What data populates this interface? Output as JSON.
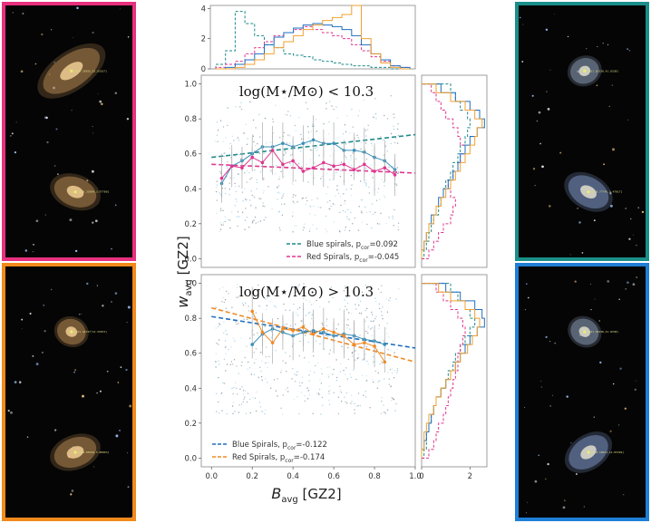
{
  "chart_data": [
    {
      "type": "scatter",
      "title": "log(M⋆/M⊙) < 10.3",
      "xlabel": "B_avg [GZ2]",
      "ylabel": "w_avg [GZ2]",
      "xlim": [
        -0.05,
        1.0
      ],
      "ylim": [
        -0.05,
        1.05
      ],
      "xticks": [
        "0.0",
        "0.2",
        "0.4",
        "0.6",
        "0.8",
        "1.0"
      ],
      "yticks": [
        "0.0",
        "0.2",
        "0.4",
        "0.6",
        "0.8",
        "1.0"
      ],
      "legend_position": "lower-right",
      "series": [
        {
          "name": "Blue spirals, p_cor=0.092",
          "color": "#1f8a8a",
          "kind": "fit-line",
          "line": [
            [
              0.0,
              0.58
            ],
            [
              1.0,
              0.71
            ]
          ]
        },
        {
          "name": "Red Spirals, p_cor=-0.045",
          "color": "#e0358f",
          "kind": "fit-line",
          "line": [
            [
              0.0,
              0.54
            ],
            [
              1.0,
              0.49
            ]
          ]
        },
        {
          "color": "#3a8fb7",
          "kind": "binned-median",
          "x": [
            0.05,
            0.1,
            0.15,
            0.2,
            0.25,
            0.3,
            0.35,
            0.4,
            0.45,
            0.5,
            0.55,
            0.6,
            0.65,
            0.7,
            0.75,
            0.8,
            0.85,
            0.9
          ],
          "y": [
            0.43,
            0.53,
            0.56,
            0.6,
            0.64,
            0.64,
            0.66,
            0.64,
            0.66,
            0.68,
            0.66,
            0.66,
            0.62,
            0.62,
            0.61,
            0.58,
            0.56,
            0.51
          ]
        },
        {
          "color": "#e0358f",
          "kind": "binned-median",
          "x": [
            0.05,
            0.1,
            0.15,
            0.2,
            0.25,
            0.3,
            0.35,
            0.4,
            0.45,
            0.5,
            0.55,
            0.6,
            0.65,
            0.7,
            0.75,
            0.8,
            0.85,
            0.9
          ],
          "y": [
            0.46,
            0.53,
            0.52,
            0.58,
            0.55,
            0.62,
            0.54,
            0.56,
            0.5,
            0.52,
            0.55,
            0.53,
            0.54,
            0.51,
            0.54,
            0.5,
            0.52,
            0.48
          ]
        }
      ]
    },
    {
      "type": "scatter",
      "title": "log(M⋆/M⊙) > 10.3",
      "xlabel": "B_avg [GZ2]",
      "ylabel": "w_avg [GZ2]",
      "xlim": [
        -0.05,
        1.0
      ],
      "ylim": [
        -0.05,
        1.05
      ],
      "xticks": [
        "0.0",
        "0.2",
        "0.4",
        "0.6",
        "0.8",
        "1.0"
      ],
      "yticks": [
        "0.0",
        "0.2",
        "0.4",
        "0.6",
        "0.8",
        "1.0"
      ],
      "legend_position": "lower-left",
      "series": [
        {
          "name": "Blue Spirals, p_cor=-0.122",
          "color": "#1f6fbf",
          "kind": "fit-line",
          "line": [
            [
              0.0,
              0.81
            ],
            [
              1.0,
              0.63
            ]
          ]
        },
        {
          "name": "Red Spirals, p_cor=-0.174",
          "color": "#f08a24",
          "kind": "fit-line",
          "line": [
            [
              0.0,
              0.86
            ],
            [
              1.0,
              0.55
            ]
          ]
        },
        {
          "color": "#3a8fb7",
          "kind": "binned-median",
          "x": [
            0.2,
            0.25,
            0.3,
            0.35,
            0.4,
            0.45,
            0.5,
            0.55,
            0.6,
            0.65,
            0.7,
            0.75,
            0.8,
            0.85
          ],
          "y": [
            0.65,
            0.71,
            0.74,
            0.72,
            0.7,
            0.72,
            0.73,
            0.72,
            0.7,
            0.71,
            0.7,
            0.68,
            0.67,
            0.65
          ]
        },
        {
          "color": "#f08a24",
          "kind": "binned-median",
          "x": [
            0.2,
            0.25,
            0.3,
            0.35,
            0.4,
            0.45,
            0.5,
            0.55,
            0.6,
            0.65,
            0.7,
            0.75,
            0.8,
            0.85
          ],
          "y": [
            0.84,
            0.72,
            0.66,
            0.74,
            0.73,
            0.75,
            0.71,
            0.74,
            0.72,
            0.7,
            0.65,
            0.66,
            0.64,
            0.55
          ]
        }
      ]
    },
    {
      "type": "histogram",
      "subtype": "step",
      "orientation": "vertical",
      "yticks": [
        "0",
        "2",
        "4"
      ],
      "ylim": [
        0,
        4.2
      ],
      "bins": [
        0.0,
        0.05,
        0.1,
        0.15,
        0.2,
        0.25,
        0.3,
        0.35,
        0.4,
        0.45,
        0.5,
        0.55,
        0.6,
        0.65,
        0.7,
        0.75,
        0.8,
        0.85,
        0.9,
        0.95,
        1.0
      ],
      "series": [
        {
          "color": "#1f8a8a",
          "dashed": true,
          "values": [
            0.3,
            1.2,
            3.8,
            3.0,
            2.2,
            1.6,
            1.4,
            1.0,
            0.9,
            0.8,
            0.6,
            0.5,
            0.4,
            0.3,
            0.2,
            0.2,
            0.1,
            0.1,
            0.0,
            0.0
          ]
        },
        {
          "color": "#e0358f",
          "dashed": true,
          "values": [
            0.1,
            0.3,
            0.5,
            1.0,
            1.4,
            1.8,
            2.2,
            2.4,
            2.6,
            2.8,
            2.6,
            2.4,
            2.2,
            2.0,
            1.6,
            1.2,
            0.8,
            0.5,
            0.2,
            0.1
          ]
        },
        {
          "color": "#1f6fbf",
          "dashed": false,
          "values": [
            0.0,
            0.1,
            0.3,
            0.6,
            1.0,
            1.6,
            2.1,
            2.4,
            2.7,
            2.9,
            3.0,
            2.9,
            2.8,
            2.6,
            2.2,
            1.6,
            1.0,
            0.6,
            0.2,
            0.1
          ]
        },
        {
          "color": "#f0a030",
          "dashed": false,
          "values": [
            0.0,
            0.0,
            0.1,
            0.3,
            0.6,
            1.0,
            1.4,
            1.8,
            2.2,
            2.6,
            2.9,
            3.2,
            3.4,
            3.6,
            4.2,
            2.0,
            1.0,
            0.4,
            0.1,
            0.0
          ]
        }
      ]
    },
    {
      "type": "histogram",
      "subtype": "step",
      "orientation": "horizontal",
      "xticks": [
        "0",
        "2"
      ],
      "xlim": [
        0,
        2.7
      ],
      "bins": [
        0.0,
        0.05,
        0.1,
        0.15,
        0.2,
        0.25,
        0.3,
        0.35,
        0.4,
        0.45,
        0.5,
        0.55,
        0.6,
        0.65,
        0.7,
        0.75,
        0.8,
        0.85,
        0.9,
        0.95,
        1.0
      ],
      "series": [
        {
          "color": "#1f8a8a",
          "dashed": true,
          "values": [
            0.1,
            0.2,
            0.3,
            0.4,
            0.5,
            0.7,
            0.8,
            0.9,
            1.0,
            1.2,
            1.3,
            1.5,
            1.6,
            1.8,
            1.9,
            2.0,
            1.9,
            1.6,
            1.4,
            1.2
          ]
        },
        {
          "color": "#e0358f",
          "dashed": true,
          "values": [
            0.3,
            0.5,
            0.7,
            0.9,
            1.2,
            1.3,
            1.4,
            1.2,
            1.1,
            1.3,
            1.5,
            1.6,
            1.8,
            1.6,
            1.5,
            1.3,
            1.0,
            0.8,
            0.6,
            0.4
          ]
        },
        {
          "color": "#1f6fbf",
          "dashed": false,
          "values": [
            0.0,
            0.1,
            0.2,
            0.3,
            0.4,
            0.6,
            0.7,
            0.9,
            1.1,
            1.3,
            1.5,
            1.6,
            1.8,
            2.0,
            2.3,
            2.6,
            2.4,
            2.0,
            1.4,
            0.8
          ]
        },
        {
          "color": "#f0a030",
          "dashed": false,
          "values": [
            0.0,
            0.1,
            0.2,
            0.3,
            0.5,
            0.6,
            0.8,
            1.0,
            1.2,
            1.4,
            1.6,
            1.8,
            2.0,
            2.2,
            2.3,
            2.5,
            2.2,
            1.8,
            1.2,
            0.6
          ]
        }
      ]
    },
    {
      "type": "histogram",
      "subtype": "step",
      "orientation": "horizontal",
      "xticks": [
        "0",
        "2"
      ],
      "xlim": [
        0,
        2.7
      ],
      "bins": [
        0.0,
        0.05,
        0.1,
        0.15,
        0.2,
        0.25,
        0.3,
        0.35,
        0.4,
        0.45,
        0.5,
        0.55,
        0.6,
        0.65,
        0.7,
        0.75,
        0.8,
        0.85,
        0.9,
        0.95,
        1.0
      ],
      "series": [
        {
          "color": "#1f8a8a",
          "dashed": true,
          "values": [
            0.1,
            0.2,
            0.2,
            0.3,
            0.4,
            0.5,
            0.6,
            0.8,
            1.0,
            1.1,
            1.3,
            1.4,
            1.6,
            1.8,
            2.0,
            2.2,
            2.0,
            1.8,
            1.5,
            1.2
          ]
        },
        {
          "color": "#e0358f",
          "dashed": true,
          "values": [
            0.3,
            0.5,
            0.6,
            0.7,
            0.9,
            1.0,
            1.1,
            1.2,
            1.3,
            1.4,
            1.5,
            1.5,
            1.6,
            1.7,
            1.8,
            1.7,
            1.5,
            1.2,
            0.9,
            0.6
          ]
        },
        {
          "color": "#1f6fbf",
          "dashed": false,
          "values": [
            0.0,
            0.1,
            0.2,
            0.3,
            0.4,
            0.5,
            0.6,
            0.8,
            1.0,
            1.2,
            1.4,
            1.6,
            1.8,
            2.0,
            2.3,
            2.6,
            2.5,
            2.2,
            1.6,
            1.0
          ]
        },
        {
          "color": "#f0a030",
          "dashed": false,
          "values": [
            0.0,
            0.1,
            0.1,
            0.2,
            0.3,
            0.5,
            0.6,
            0.8,
            1.0,
            1.2,
            1.4,
            1.6,
            1.9,
            2.1,
            2.3,
            2.4,
            2.2,
            1.8,
            1.2,
            0.7
          ]
        }
      ]
    }
  ],
  "annotations": {
    "top_title": "log(M⋆/M⊙) < 10.3",
    "bottom_title": "log(M⋆/M⊙) > 10.3",
    "ylabel_main": "w",
    "ylabel_sub": "avg",
    "ylabel_rest": " [GZ2]",
    "xlabel_main": "B",
    "xlabel_sub": "avg",
    "xlabel_rest": " [GZ2]"
  },
  "legends": {
    "top": [
      {
        "pre": "Blue spirals, p",
        "sub": "cor",
        "post": "=0.092",
        "color": "#1f8a8a"
      },
      {
        "pre": "Red Spirals, p",
        "sub": "cor",
        "post": "=-0.045",
        "color": "#e0358f"
      }
    ],
    "bottom": [
      {
        "pre": "Blue Spirals, p",
        "sub": "cor",
        "post": "=-0.122",
        "color": "#1f6fbf"
      },
      {
        "pre": "Red Spirals, p",
        "sub": "cor",
        "post": "=-0.174",
        "color": "#f08a24"
      }
    ]
  },
  "image_panels": [
    {
      "border": "#e8317e",
      "labels": [
        "[219.35955,25.93167]",
        "[219.35984,3.97780]"
      ]
    },
    {
      "border": "#f28a1c",
      "labels": [
        "[161.44737,14.33073]",
        "[229.88199,5.88893]"
      ]
    },
    {
      "border": "#1a8f8a",
      "labels": [
        "[161.83338,41.8338]",
        "[168.77745,3.47017]"
      ]
    },
    {
      "border": "#1f7fd6",
      "labels": [
        "[161.83338,41.8338]",
        "[228.18071,12.83349]"
      ]
    }
  ]
}
